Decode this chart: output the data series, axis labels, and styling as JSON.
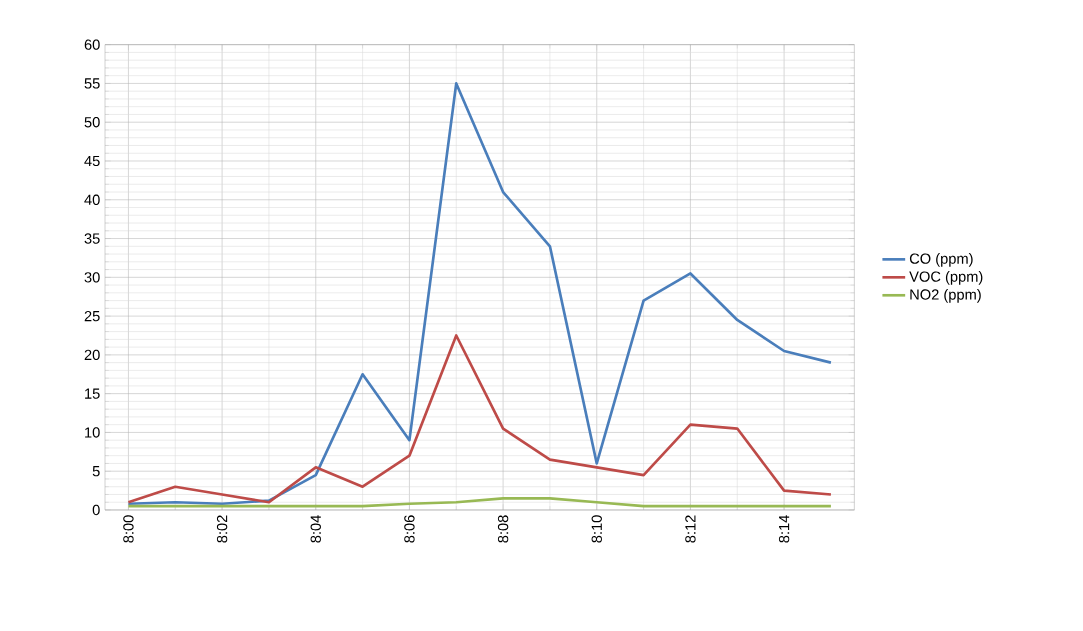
{
  "chart_data": {
    "type": "line",
    "categories": [
      "8:00",
      null,
      "8:02",
      null,
      "8:04",
      null,
      "8:06",
      null,
      "8:08",
      null,
      "8:10",
      null,
      "8:12",
      null,
      "8:14",
      null
    ],
    "series": [
      {
        "name": "CO (ppm)",
        "color": "#4a7ebb",
        "values": [
          0.8,
          1,
          0.8,
          1.2,
          4.5,
          17.5,
          9,
          55,
          41,
          34,
          6,
          27,
          30.5,
          24.5,
          20.5,
          19
        ]
      },
      {
        "name": "VOC (ppm)",
        "color": "#be4b48",
        "values": [
          1,
          3,
          2,
          1,
          5.5,
          3,
          7,
          22.5,
          10.5,
          6.5,
          5.5,
          4.5,
          11,
          10.5,
          2.5,
          2
        ]
      },
      {
        "name": "NO2 (ppm)",
        "color": "#98b954",
        "values": [
          0.5,
          0.5,
          0.5,
          0.5,
          0.5,
          0.5,
          0.8,
          1,
          1.5,
          1.5,
          1,
          0.5,
          0.5,
          0.5,
          0.5,
          0.5
        ]
      }
    ],
    "ylim": [
      0,
      60
    ],
    "yticks": [
      0,
      5,
      10,
      15,
      20,
      25,
      30,
      35,
      40,
      45,
      50,
      55,
      60
    ],
    "grid": true,
    "legend": "right",
    "marker": "none",
    "line_style": "solid"
  }
}
